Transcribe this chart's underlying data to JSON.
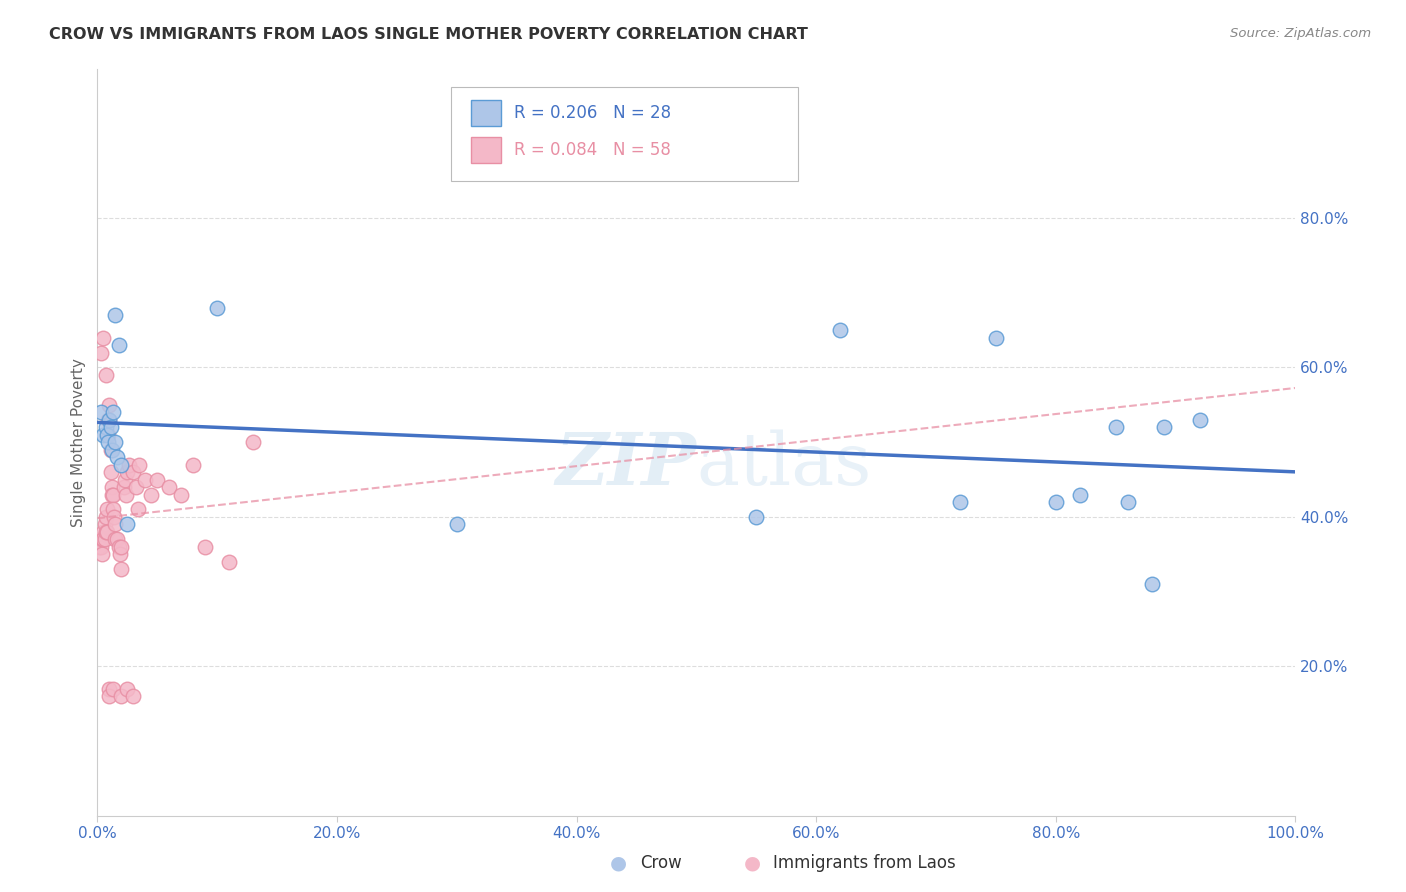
{
  "title": "CROW VS IMMIGRANTS FROM LAOS SINGLE MOTHER POVERTY CORRELATION CHART",
  "source": "Source: ZipAtlas.com",
  "ylabel": "Single Mother Poverty",
  "background_color": "#ffffff",
  "grid_color": "#dddddd",
  "crow_color": "#aec6e8",
  "crow_edge_color": "#5b9bd5",
  "crow_line_color": "#4472c4",
  "laos_color": "#f4b8c8",
  "laos_edge_color": "#e88fa4",
  "laos_line_color": "#e88fa4",
  "crow_R": 0.206,
  "crow_N": 28,
  "laos_R": 0.084,
  "laos_N": 58,
  "xlim": [
    0.0,
    1.0
  ],
  "ylim": [
    0.0,
    1.0
  ],
  "xtick_vals": [
    0.0,
    0.2,
    0.4,
    0.6,
    0.8,
    1.0
  ],
  "xtick_labels": [
    "0.0%",
    "20.0%",
    "40.0%",
    "60.0%",
    "80.0%",
    "100.0%"
  ],
  "ytick_vals": [
    0.2,
    0.4,
    0.6,
    0.8
  ],
  "ytick_labels": [
    "20.0%",
    "40.0%",
    "60.0%",
    "80.0%"
  ],
  "crow_x": [
    0.003,
    0.005,
    0.007,
    0.008,
    0.009,
    0.01,
    0.011,
    0.012,
    0.013,
    0.015,
    0.016,
    0.018,
    0.02,
    0.025,
    0.1,
    0.55,
    0.62,
    0.75,
    0.8,
    0.82,
    0.86,
    0.88,
    0.89,
    0.92,
    0.015,
    0.3,
    0.72,
    0.85
  ],
  "crow_y": [
    0.54,
    0.51,
    0.52,
    0.51,
    0.5,
    0.53,
    0.52,
    0.49,
    0.54,
    0.5,
    0.48,
    0.63,
    0.47,
    0.39,
    0.68,
    0.4,
    0.65,
    0.64,
    0.42,
    0.43,
    0.42,
    0.31,
    0.52,
    0.53,
    0.67,
    0.39,
    0.42,
    0.52
  ],
  "laos_x": [
    0.001,
    0.002,
    0.003,
    0.004,
    0.004,
    0.005,
    0.005,
    0.006,
    0.006,
    0.007,
    0.007,
    0.008,
    0.008,
    0.009,
    0.009,
    0.01,
    0.01,
    0.011,
    0.011,
    0.012,
    0.012,
    0.013,
    0.013,
    0.014,
    0.015,
    0.015,
    0.016,
    0.018,
    0.019,
    0.02,
    0.02,
    0.022,
    0.023,
    0.024,
    0.025,
    0.026,
    0.03,
    0.032,
    0.034,
    0.035,
    0.04,
    0.045,
    0.05,
    0.06,
    0.07,
    0.08,
    0.09,
    0.11,
    0.13,
    0.003,
    0.005,
    0.007,
    0.01,
    0.01,
    0.013,
    0.02,
    0.025,
    0.03
  ],
  "laos_y": [
    0.36,
    0.37,
    0.36,
    0.37,
    0.35,
    0.38,
    0.37,
    0.39,
    0.37,
    0.4,
    0.38,
    0.41,
    0.38,
    0.53,
    0.51,
    0.55,
    0.53,
    0.49,
    0.46,
    0.44,
    0.43,
    0.43,
    0.41,
    0.4,
    0.39,
    0.37,
    0.37,
    0.36,
    0.35,
    0.36,
    0.33,
    0.44,
    0.45,
    0.43,
    0.46,
    0.47,
    0.46,
    0.44,
    0.41,
    0.47,
    0.45,
    0.43,
    0.45,
    0.44,
    0.43,
    0.47,
    0.36,
    0.34,
    0.5,
    0.62,
    0.64,
    0.59,
    0.17,
    0.16,
    0.17,
    0.16,
    0.17,
    0.16
  ],
  "tick_color": "#4472c4",
  "label_color": "#666666",
  "title_color": "#333333",
  "source_color": "#888888"
}
